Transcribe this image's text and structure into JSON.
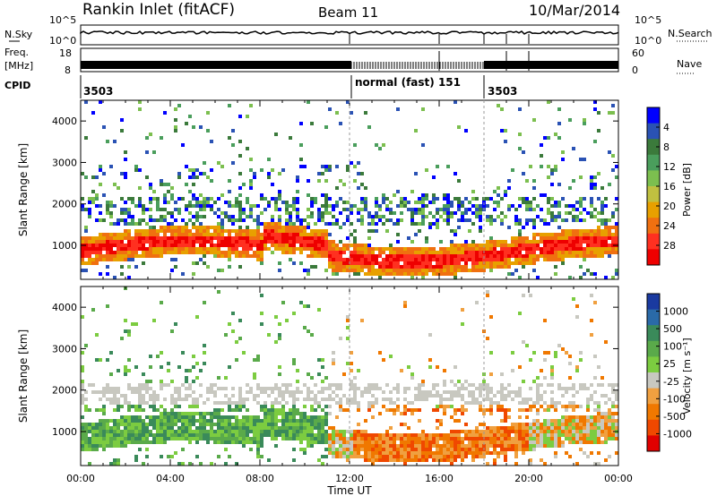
{
  "header": {
    "station": "Rankin Inlet (fitACF)",
    "beam": "Beam 11",
    "date": "10/Mar/2014"
  },
  "top_panels": {
    "nsky_label": "N.Sky",
    "nsearch_label": "N.Search",
    "noise_ticks": [
      "10^5",
      "10^0"
    ],
    "noise_ticks_right": [
      "10^5",
      "10^0"
    ],
    "freq_label": "Freq.",
    "freq_unit": "[MHz]",
    "freq_ticks": [
      "18",
      "8"
    ],
    "nave_label": "Nave",
    "nave_ticks": [
      "60",
      "0"
    ],
    "cpid_label": "CPID",
    "cpid_entries": [
      {
        "text": "3503",
        "start_hour": 0
      },
      {
        "text": "normal (fast) 151",
        "start_hour": 12
      },
      {
        "text": "3503",
        "start_hour": 18
      }
    ]
  },
  "chart_data": [
    {
      "type": "heatmap",
      "parameter": "power",
      "ylabel": "Slant Range [km]",
      "xlabel": "",
      "x_range_hours": [
        0,
        24
      ],
      "ylim": [
        180,
        4500
      ],
      "yticks": [
        1000,
        2000,
        3000,
        4000
      ],
      "colorbar_label": "Power [dB]",
      "colorbar_ticks": [
        "4",
        "8",
        "12",
        "16",
        "20",
        "24",
        "28"
      ],
      "colorbar_colors": [
        "#0000ff",
        "#2a52b4",
        "#3b7a3b",
        "#4a9e5c",
        "#7cbf4f",
        "#c0c040",
        "#e8a000",
        "#f07010",
        "#ff3020",
        "#ee0000"
      ],
      "mode_change_hours": [
        12,
        18
      ]
    },
    {
      "type": "heatmap",
      "parameter": "velocity",
      "ylabel": "Slant Range [km]",
      "xlabel": "Time UT",
      "x_range_hours": [
        0,
        24
      ],
      "ylim": [
        180,
        4500
      ],
      "yticks": [
        1000,
        2000,
        3000,
        4000
      ],
      "xticks": [
        "00:00",
        "04:00",
        "08:00",
        "12:00",
        "16:00",
        "20:00",
        "00:00"
      ],
      "colorbar_label": "Velocity [m s⁻¹]",
      "colorbar_ticks": [
        "1000",
        "500",
        "100",
        "25",
        "-25",
        "-100",
        "-500",
        "-1000"
      ],
      "colorbar_colors": [
        "#1a3aa0",
        "#2a6aa8",
        "#3a8a5a",
        "#5aaa4a",
        "#7ccc40",
        "#c8c8c0",
        "#f0a040",
        "#f07800",
        "#f04800",
        "#e00000"
      ],
      "mode_change_hours": [
        12,
        18
      ]
    }
  ]
}
